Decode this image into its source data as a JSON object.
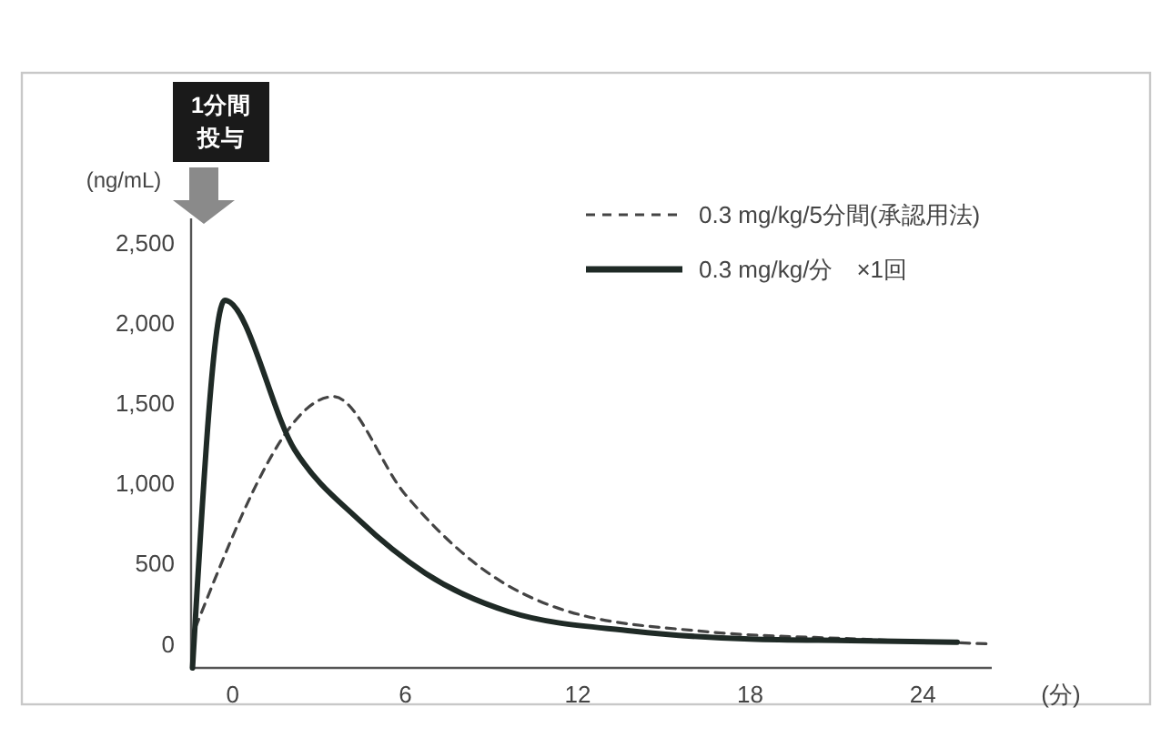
{
  "chart_data": {
    "type": "line",
    "xlabel": "(分)",
    "ylabel": "(ng/mL)",
    "xlim": [
      -1.45,
      26.4
    ],
    "xticks": [
      0,
      6,
      12,
      18,
      24
    ],
    "ylim": [
      -150,
      2650
    ],
    "yticks": [
      0,
      500,
      {
        "value": 1000,
        "label": "1,000"
      },
      {
        "value": 1500,
        "label": "1,500"
      },
      {
        "value": 2000,
        "label": "2,000"
      },
      {
        "value": 2500,
        "label": "2,500"
      }
    ],
    "grid": false,
    "legend": "top right",
    "annotations": [
      "1分間",
      "投与"
    ],
    "series": [
      {
        "name": "0.3 mg/kg/5分間(承認用法)",
        "color": "#444444",
        "line_style": "dashed",
        "x": [
          -1.3,
          3.5,
          6.0,
          8.3,
          11.7,
          16.2,
          21.8,
          26.3
        ],
        "values": [
          100,
          1540,
          930,
          520,
          200,
          80,
          30,
          0
        ]
      },
      {
        "name": "0.3 mg/kg/分　×1回",
        "color": "#1f2a26",
        "line_style": "solid",
        "x": [
          -1.4,
          -0.28,
          2.15,
          4.4,
          6.7,
          9.6,
          13.9,
          18,
          21.5,
          25.2
        ],
        "values": [
          -150,
          2140,
          1210,
          770,
          440,
          200,
          80,
          30,
          20,
          10
        ]
      }
    ]
  }
}
